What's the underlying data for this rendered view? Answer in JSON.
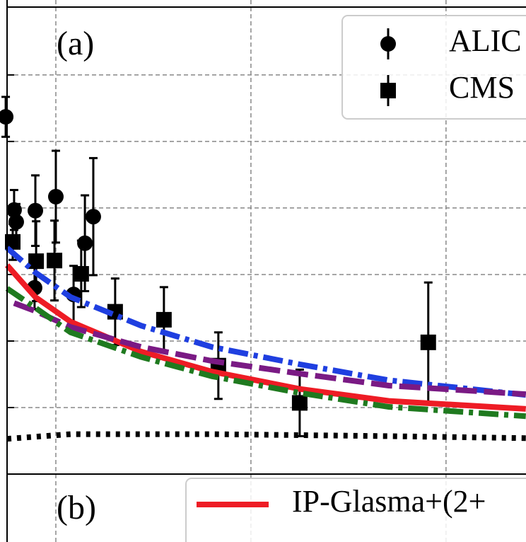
{
  "chart_data": {
    "type": "line",
    "panel_labels": [
      "(a)",
      "(b)"
    ],
    "xlim": [
      0.75,
      3.41
    ],
    "ylim": [
      0,
      7.02
    ],
    "xticks": [
      1,
      2,
      3
    ],
    "yticks": [
      1,
      2,
      3,
      4,
      5,
      6
    ],
    "grid": true,
    "series": [
      {
        "type": "errorbar",
        "name": "ALIC",
        "marker": "circle",
        "color": "#000000",
        "x": [
          0.743,
          0.786,
          0.797,
          0.895,
          0.891,
          1.0,
          1.091,
          1.149,
          1.192
        ],
        "values": [
          5.37,
          3.97,
          3.79,
          3.96,
          2.8,
          4.17,
          2.7,
          3.47,
          3.87
        ],
        "errors": [
          0.3,
          0.3,
          0.27,
          0.53,
          0.32,
          0.69,
          0.43,
          0.72,
          0.88
        ]
      },
      {
        "type": "errorbar",
        "name": "CMS",
        "marker": "square",
        "color": "#000000",
        "x": [
          0.779,
          0.899,
          0.993,
          1.13,
          1.304,
          1.554,
          1.833,
          2.25,
          2.909
        ],
        "values": [
          3.49,
          3.2,
          3.21,
          3.01,
          2.44,
          2.32,
          1.63,
          1.07,
          1.98
        ],
        "errors": [
          0.27,
          0.6,
          0.6,
          0.5,
          0.5,
          0.49,
          0.5,
          0.5,
          0.9
        ]
      },
      {
        "type": "line",
        "name": "IP-Glasma+(2+",
        "color": "#ee1c25",
        "dash": "solid",
        "x": [
          0.75,
          0.895,
          1.076,
          1.438,
          1.801,
          2.25,
          2.707,
          3.409
        ],
        "values": [
          3.14,
          2.66,
          2.29,
          1.84,
          1.54,
          1.28,
          1.1,
          0.98
        ]
      },
      {
        "type": "line",
        "color": "#1f3fe0",
        "dash": "dashdot",
        "x": [
          0.75,
          0.895,
          1.076,
          1.438,
          1.801,
          2.25,
          2.707,
          3.409
        ],
        "values": [
          3.4,
          3.03,
          2.66,
          2.23,
          1.91,
          1.65,
          1.41,
          1.19
        ]
      },
      {
        "type": "line",
        "color": "#7a1a84",
        "dash": "dashed",
        "x": [
          0.786,
          0.895,
          1.076,
          1.438,
          1.801,
          2.25,
          2.707,
          3.409
        ],
        "values": [
          2.57,
          2.45,
          2.21,
          1.91,
          1.7,
          1.51,
          1.33,
          1.2
        ]
      },
      {
        "type": "line",
        "color": "#1f7a1f",
        "dash": "dashdot",
        "x": [
          0.75,
          0.895,
          1.076,
          1.438,
          1.801,
          2.25,
          2.707,
          3.409
        ],
        "values": [
          2.79,
          2.5,
          2.13,
          1.76,
          1.47,
          1.22,
          1.01,
          0.87
        ]
      },
      {
        "type": "line",
        "color": "#000000",
        "dash": "dotted",
        "x": [
          0.75,
          1.076,
          1.801,
          2.707,
          3.409
        ],
        "values": [
          0.53,
          0.6,
          0.6,
          0.57,
          0.54
        ]
      }
    ]
  }
}
